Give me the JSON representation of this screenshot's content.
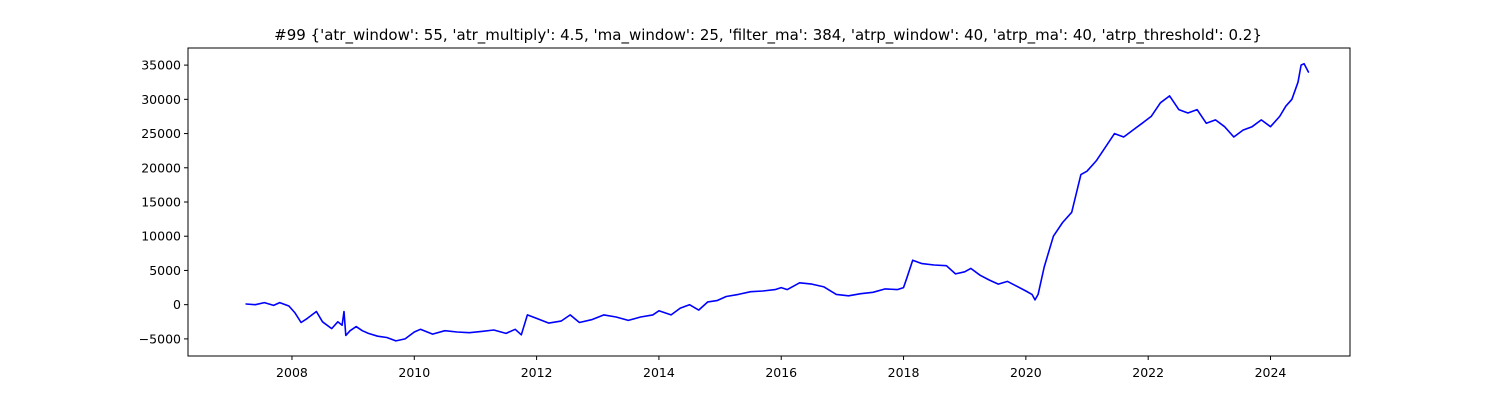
{
  "chart_data": {
    "type": "line",
    "title": "#99 {'atr_window': 55, 'atr_multiply': 4.5, 'ma_window': 25, 'filter_ma': 384, 'atrp_window': 40, 'atrp_ma': 40, 'atrp_threshold': 0.2}",
    "xlabel": "",
    "ylabel": "",
    "xlim": [
      2006.3,
      2025.3
    ],
    "ylim": [
      -7500,
      37500
    ],
    "grid": false,
    "line_color": "#0000ff",
    "x_ticks": [
      2008,
      2010,
      2012,
      2014,
      2016,
      2018,
      2020,
      2022,
      2024
    ],
    "x_tick_labels": [
      "2008",
      "2010",
      "2012",
      "2014",
      "2016",
      "2018",
      "2020",
      "2022",
      "2024"
    ],
    "y_ticks": [
      -5000,
      0,
      5000,
      10000,
      15000,
      20000,
      25000,
      30000,
      35000
    ],
    "y_tick_labels": [
      "−5000",
      "0",
      "5000",
      "10000",
      "15000",
      "20000",
      "25000",
      "30000",
      "35000"
    ],
    "series": [
      {
        "name": "equity",
        "x": [
          2007.25,
          2007.4,
          2007.55,
          2007.7,
          2007.8,
          2007.95,
          2008.05,
          2008.15,
          2008.25,
          2008.4,
          2008.5,
          2008.65,
          2008.75,
          2008.82,
          2008.85,
          2008.88,
          2008.95,
          2009.05,
          2009.15,
          2009.25,
          2009.4,
          2009.55,
          2009.7,
          2009.85,
          2010.0,
          2010.1,
          2010.3,
          2010.5,
          2010.7,
          2010.9,
          2011.1,
          2011.3,
          2011.5,
          2011.65,
          2011.75,
          2011.85,
          2012.0,
          2012.2,
          2012.4,
          2012.55,
          2012.7,
          2012.9,
          2013.1,
          2013.3,
          2013.5,
          2013.7,
          2013.9,
          2014.0,
          2014.2,
          2014.35,
          2014.5,
          2014.65,
          2014.8,
          2014.95,
          2015.1,
          2015.3,
          2015.5,
          2015.7,
          2015.9,
          2016.0,
          2016.1,
          2016.3,
          2016.5,
          2016.7,
          2016.9,
          2017.1,
          2017.3,
          2017.5,
          2017.7,
          2017.9,
          2018.0,
          2018.05,
          2018.15,
          2018.3,
          2018.5,
          2018.7,
          2018.85,
          2019.0,
          2019.1,
          2019.25,
          2019.4,
          2019.55,
          2019.7,
          2019.85,
          2020.0,
          2020.1,
          2020.15,
          2020.2,
          2020.3,
          2020.45,
          2020.6,
          2020.75,
          2020.9,
          2021.0,
          2021.15,
          2021.3,
          2021.45,
          2021.6,
          2021.75,
          2021.9,
          2022.05,
          2022.2,
          2022.35,
          2022.5,
          2022.65,
          2022.8,
          2022.95,
          2023.1,
          2023.25,
          2023.4,
          2023.55,
          2023.7,
          2023.85,
          2024.0,
          2024.15,
          2024.25,
          2024.35,
          2024.45,
          2024.5,
          2024.55,
          2024.62
        ],
        "values": [
          100,
          0,
          300,
          -100,
          300,
          -200,
          -1200,
          -2600,
          -2000,
          -1000,
          -2500,
          -3500,
          -2500,
          -3000,
          -1000,
          -4500,
          -3800,
          -3200,
          -3800,
          -4200,
          -4600,
          -4800,
          -5300,
          -5000,
          -4000,
          -3600,
          -4300,
          -3800,
          -4000,
          -4100,
          -3900,
          -3700,
          -4200,
          -3600,
          -4400,
          -1500,
          -2000,
          -2700,
          -2400,
          -1500,
          -2600,
          -2200,
          -1500,
          -1800,
          -2300,
          -1800,
          -1500,
          -900,
          -1500,
          -500,
          0,
          -800,
          400,
          600,
          1200,
          1500,
          1900,
          2000,
          2200,
          2500,
          2200,
          3200,
          3000,
          2600,
          1500,
          1300,
          1600,
          1800,
          2300,
          2200,
          2500,
          3800,
          6500,
          6000,
          5800,
          5700,
          4500,
          4800,
          5300,
          4300,
          3600,
          3000,
          3400,
          2700,
          2000,
          1500,
          700,
          1500,
          5500,
          10000,
          12000,
          13500,
          19000,
          19500,
          21000,
          23000,
          25000,
          24500,
          25500,
          26500,
          27500,
          29500,
          30500,
          28500,
          28000,
          28500,
          26500,
          27000,
          26000,
          24500,
          25500,
          26000,
          27000,
          26000,
          27500,
          29000,
          30000,
          32500,
          35000,
          35200,
          34000
        ]
      }
    ]
  }
}
